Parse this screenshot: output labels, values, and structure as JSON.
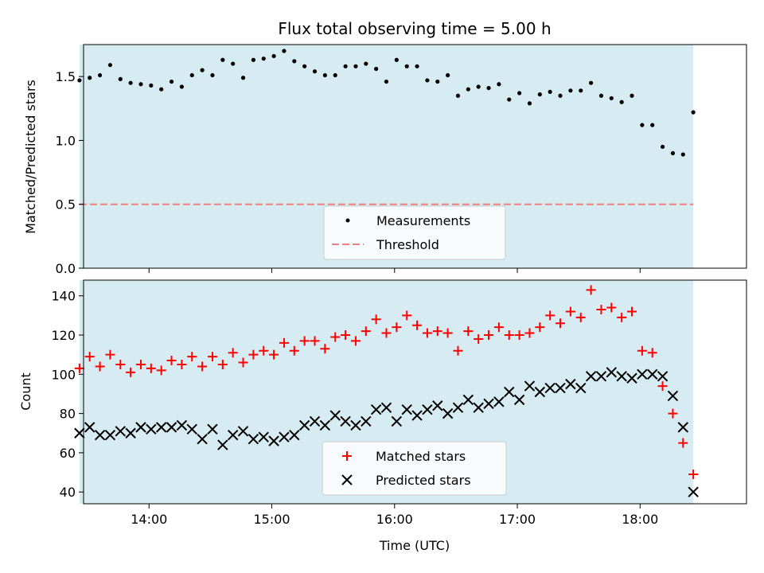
{
  "chart_data": [
    {
      "type": "scatter",
      "title": "Flux total observing time = 5.00 h",
      "xlabel": "",
      "ylabel": "Matched/Predicted stars",
      "xlim": [
        "13:28",
        "18:52"
      ],
      "ylim": [
        0,
        1.75
      ],
      "yticks": [
        "0.0",
        "0.5",
        "1.0",
        "1.5"
      ],
      "shaded_interval": [
        "13:26",
        "18:26"
      ],
      "legend": "lower center",
      "series": [
        {
          "name": "Measurements",
          "marker": "dot",
          "color": "#000000",
          "x": [
            "13:26",
            "13:31",
            "13:36",
            "13:41",
            "13:46",
            "13:51",
            "13:56",
            "14:01",
            "14:06",
            "14:11",
            "14:16",
            "14:21",
            "14:26",
            "14:31",
            "14:36",
            "14:41",
            "14:46",
            "14:51",
            "14:56",
            "15:01",
            "15:06",
            "15:11",
            "15:16",
            "15:21",
            "15:26",
            "15:31",
            "15:36",
            "15:41",
            "15:46",
            "15:51",
            "15:56",
            "16:01",
            "16:06",
            "16:11",
            "16:16",
            "16:21",
            "16:26",
            "16:31",
            "16:36",
            "16:41",
            "16:46",
            "16:51",
            "16:56",
            "17:01",
            "17:06",
            "17:11",
            "17:16",
            "17:21",
            "17:26",
            "17:31",
            "17:36",
            "17:41",
            "17:46",
            "17:51",
            "17:56",
            "18:01",
            "18:06",
            "18:11",
            "18:16",
            "18:21",
            "18:26"
          ],
          "y": [
            1.47,
            1.49,
            1.51,
            1.59,
            1.48,
            1.45,
            1.44,
            1.43,
            1.4,
            1.46,
            1.42,
            1.51,
            1.55,
            1.51,
            1.63,
            1.6,
            1.49,
            1.63,
            1.64,
            1.66,
            1.7,
            1.62,
            1.58,
            1.54,
            1.51,
            1.51,
            1.58,
            1.58,
            1.6,
            1.56,
            1.46,
            1.63,
            1.58,
            1.58,
            1.47,
            1.46,
            1.51,
            1.35,
            1.4,
            1.42,
            1.41,
            1.44,
            1.32,
            1.37,
            1.29,
            1.36,
            1.38,
            1.35,
            1.39,
            1.39,
            1.45,
            1.35,
            1.33,
            1.3,
            1.35,
            1.12,
            1.12,
            0.95,
            0.9,
            0.89,
            1.22
          ]
        },
        {
          "name": "Threshold",
          "marker": "dashed-line",
          "color": "#f08080",
          "value": 0.5
        }
      ]
    },
    {
      "type": "scatter",
      "title": "",
      "xlabel": "Time (UTC)",
      "ylabel": "Count",
      "xlim": [
        "13:28",
        "18:52"
      ],
      "ylim": [
        34,
        148
      ],
      "yticks": [
        "40",
        "60",
        "80",
        "100",
        "120",
        "140"
      ],
      "xticks": [
        "14:00",
        "15:00",
        "16:00",
        "17:00",
        "18:00"
      ],
      "shaded_interval": [
        "13:26",
        "18:26"
      ],
      "legend": "lower center",
      "series": [
        {
          "name": "Matched stars",
          "marker": "plus",
          "color": "#ff0000",
          "x": [
            "13:26",
            "13:31",
            "13:36",
            "13:41",
            "13:46",
            "13:51",
            "13:56",
            "14:01",
            "14:06",
            "14:11",
            "14:16",
            "14:21",
            "14:26",
            "14:31",
            "14:36",
            "14:41",
            "14:46",
            "14:51",
            "14:56",
            "15:01",
            "15:06",
            "15:11",
            "15:16",
            "15:21",
            "15:26",
            "15:31",
            "15:36",
            "15:41",
            "15:46",
            "15:51",
            "15:56",
            "16:01",
            "16:06",
            "16:11",
            "16:16",
            "16:21",
            "16:26",
            "16:31",
            "16:36",
            "16:41",
            "16:46",
            "16:51",
            "16:56",
            "17:01",
            "17:06",
            "17:11",
            "17:16",
            "17:21",
            "17:26",
            "17:31",
            "17:36",
            "17:41",
            "17:46",
            "17:51",
            "17:56",
            "18:01",
            "18:06",
            "18:11",
            "18:16",
            "18:21",
            "18:26"
          ],
          "y": [
            103,
            109,
            104,
            110,
            105,
            101,
            105,
            103,
            102,
            107,
            105,
            109,
            104,
            109,
            105,
            111,
            106,
            110,
            112,
            110,
            116,
            112,
            117,
            117,
            113,
            119,
            120,
            117,
            122,
            128,
            121,
            124,
            130,
            125,
            121,
            122,
            121,
            112,
            122,
            118,
            120,
            124,
            120,
            120,
            121,
            124,
            130,
            126,
            132,
            129,
            143,
            133,
            134,
            129,
            132,
            112,
            111,
            94,
            80,
            65,
            49
          ]
        },
        {
          "name": "Predicted stars",
          "marker": "x",
          "color": "#000000",
          "x": [
            "13:26",
            "13:31",
            "13:36",
            "13:41",
            "13:46",
            "13:51",
            "13:56",
            "14:01",
            "14:06",
            "14:11",
            "14:16",
            "14:21",
            "14:26",
            "14:31",
            "14:36",
            "14:41",
            "14:46",
            "14:51",
            "14:56",
            "15:01",
            "15:06",
            "15:11",
            "15:16",
            "15:21",
            "15:26",
            "15:31",
            "15:36",
            "15:41",
            "15:46",
            "15:51",
            "15:56",
            "16:01",
            "16:06",
            "16:11",
            "16:16",
            "16:21",
            "16:26",
            "16:31",
            "16:36",
            "16:41",
            "16:46",
            "16:51",
            "16:56",
            "17:01",
            "17:06",
            "17:11",
            "17:16",
            "17:21",
            "17:26",
            "17:31",
            "17:36",
            "17:41",
            "17:46",
            "17:51",
            "17:56",
            "18:01",
            "18:06",
            "18:11",
            "18:16",
            "18:21",
            "18:26"
          ],
          "y": [
            70,
            73,
            69,
            69,
            71,
            70,
            73,
            72,
            73,
            73,
            74,
            72,
            67,
            72,
            64,
            69,
            71,
            67,
            68,
            66,
            68,
            69,
            74,
            76,
            74,
            79,
            76,
            74,
            76,
            82,
            83,
            76,
            82,
            79,
            82,
            84,
            80,
            83,
            87,
            83,
            85,
            86,
            91,
            87,
            94,
            91,
            93,
            93,
            95,
            93,
            99,
            99,
            101,
            99,
            98,
            100,
            100,
            99,
            89,
            73,
            40
          ]
        }
      ]
    }
  ]
}
